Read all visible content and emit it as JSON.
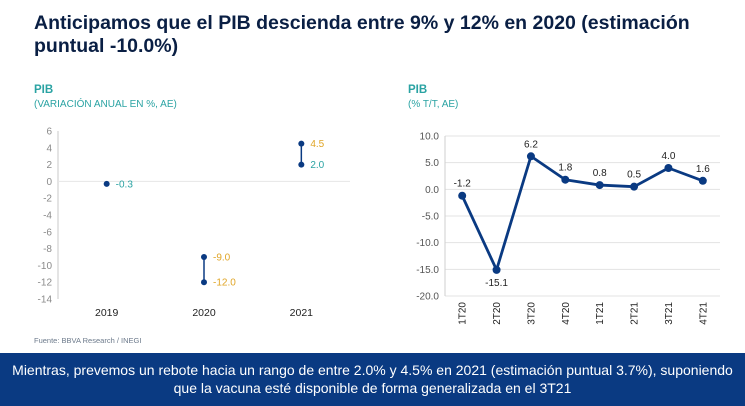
{
  "title": "Anticipamos que el PIB descienda entre 9% y 12% en 2020 (estimación puntual -10.0%)",
  "source": "Fuente: BBVA Research / INEGI",
  "banner": "Mientras, prevemos un rebote hacia un rango de entre 2.0% y 4.5% en 2021 (estimación puntual 3.7%), suponiendo que la vacuna esté disponible de forma generalizada en el 3T21",
  "colors": {
    "navy": "#0a3a82",
    "teal": "#2aa3a3",
    "gold": "#e0a526",
    "grid": "#e3e3e3",
    "axis": "#666666"
  },
  "chart_data": [
    {
      "type": "scatter",
      "title": "PIB",
      "subtitle": "(VARIACIÓN ANUAL EN %, AE)",
      "categories": [
        "2019",
        "2020",
        "2021"
      ],
      "ylim": [
        -14,
        6
      ],
      "yticks": [
        "6",
        "4",
        "2",
        "0",
        "-2",
        "-4",
        "-6",
        "-8",
        "-10",
        "-12",
        "-14"
      ],
      "points": [
        {
          "x": "2019",
          "low": -0.3,
          "high": null,
          "low_label": "-0.3",
          "high_label": null
        },
        {
          "x": "2020",
          "low": -12.0,
          "high": -9.0,
          "low_label": "-12.0",
          "high_label": "-9.0"
        },
        {
          "x": "2021",
          "low": 2.0,
          "high": 4.5,
          "low_label": "2.0",
          "high_label": "4.5"
        }
      ]
    },
    {
      "type": "line",
      "title": "PIB",
      "subtitle": "(% T/T, AE)",
      "categories": [
        "1T20",
        "2T20",
        "3T20",
        "4T20",
        "1T21",
        "2T21",
        "3T21",
        "4T21"
      ],
      "values": [
        -1.2,
        -15.1,
        6.2,
        1.8,
        0.8,
        0.5,
        4.0,
        1.6
      ],
      "labels": [
        "-1.2",
        "-15.1",
        "6.2",
        "1.8",
        "0.8",
        "0.5",
        "4.0",
        "1.6"
      ],
      "ylim": [
        -20,
        10
      ],
      "yticks": [
        "10.0",
        "5.0",
        "0.0",
        "-5.0",
        "-10.0",
        "-15.0",
        "-20.0"
      ],
      "grid": true
    }
  ]
}
